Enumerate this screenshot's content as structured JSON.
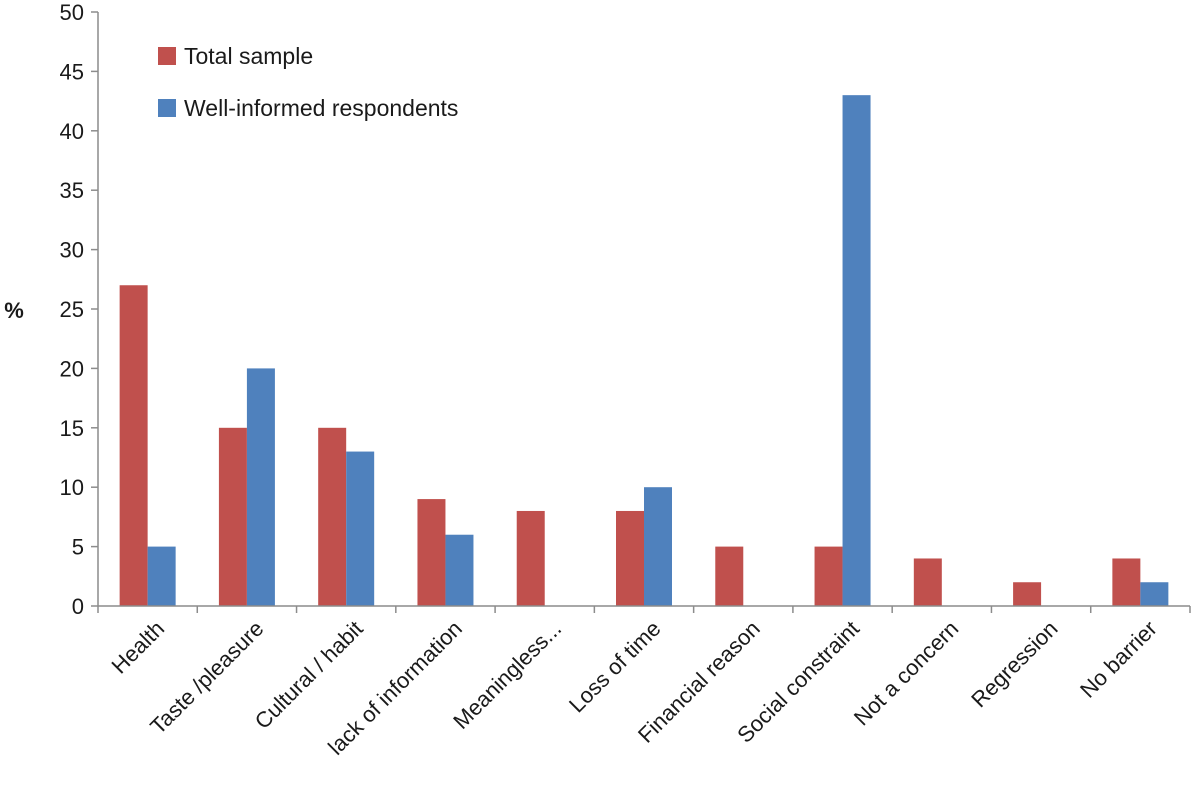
{
  "chart_data": {
    "type": "bar",
    "title": "",
    "xlabel": "",
    "ylabel": "%",
    "ylim": [
      0,
      50
    ],
    "yticks": [
      0,
      5,
      10,
      15,
      20,
      25,
      30,
      35,
      40,
      45,
      50
    ],
    "grid": false,
    "legend_position": "top-left",
    "categories": [
      "Health",
      "Taste /pleasure",
      "Cultural / habit",
      "lack of information",
      "Meaningless...",
      "Loss of time",
      "Financial reason",
      "Social constraint",
      "Not a concern",
      "Regression",
      "No barrier"
    ],
    "series": [
      {
        "name": "Total sample",
        "color": "#c0504d",
        "values": [
          27,
          15,
          15,
          9,
          8,
          8,
          5,
          5,
          4,
          2,
          4
        ]
      },
      {
        "name": "Well-informed respondents",
        "color": "#4f81bd",
        "values": [
          5,
          20,
          13,
          6,
          0,
          10,
          0,
          43,
          0,
          0,
          2
        ]
      }
    ]
  }
}
